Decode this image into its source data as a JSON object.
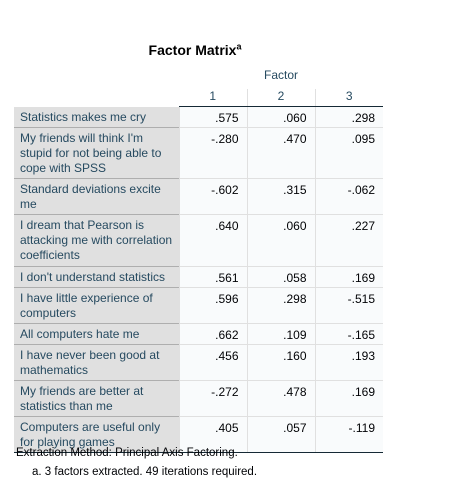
{
  "title": "Factor Matrix",
  "title_footnote_mark": "a",
  "column_group_label": "Factor",
  "columns": [
    "1",
    "2",
    "3"
  ],
  "rows": [
    {
      "label": "Statistics makes me cry",
      "values": [
        ".575",
        ".060",
        ".298"
      ]
    },
    {
      "label": "My friends will think I'm stupid for not being able to cope with SPSS",
      "values": [
        "-.280",
        ".470",
        ".095"
      ]
    },
    {
      "label": "Standard deviations excite me",
      "values": [
        "-.602",
        ".315",
        "-.062"
      ]
    },
    {
      "label": "I dream that Pearson is attacking me with correlation coefficients",
      "values": [
        ".640",
        ".060",
        ".227"
      ]
    },
    {
      "label": "I don't understand statistics",
      "values": [
        ".561",
        ".058",
        ".169"
      ]
    },
    {
      "label": "I have little experience of computers",
      "values": [
        ".596",
        ".298",
        "-.515"
      ]
    },
    {
      "label": "All computers hate me",
      "values": [
        ".662",
        ".109",
        "-.165"
      ]
    },
    {
      "label": "I have never been good at mathematics",
      "values": [
        ".456",
        ".160",
        ".193"
      ]
    },
    {
      "label": "My friends are better at statistics than me",
      "values": [
        "-.272",
        ".478",
        ".169"
      ]
    },
    {
      "label": "Computers are useful only for playing games",
      "values": [
        ".405",
        ".057",
        "-.119"
      ]
    }
  ],
  "notes": {
    "method": "Extraction Method: Principal Axis Factoring.",
    "footnote": "a. 3 factors extracted. 49 iterations required."
  }
}
